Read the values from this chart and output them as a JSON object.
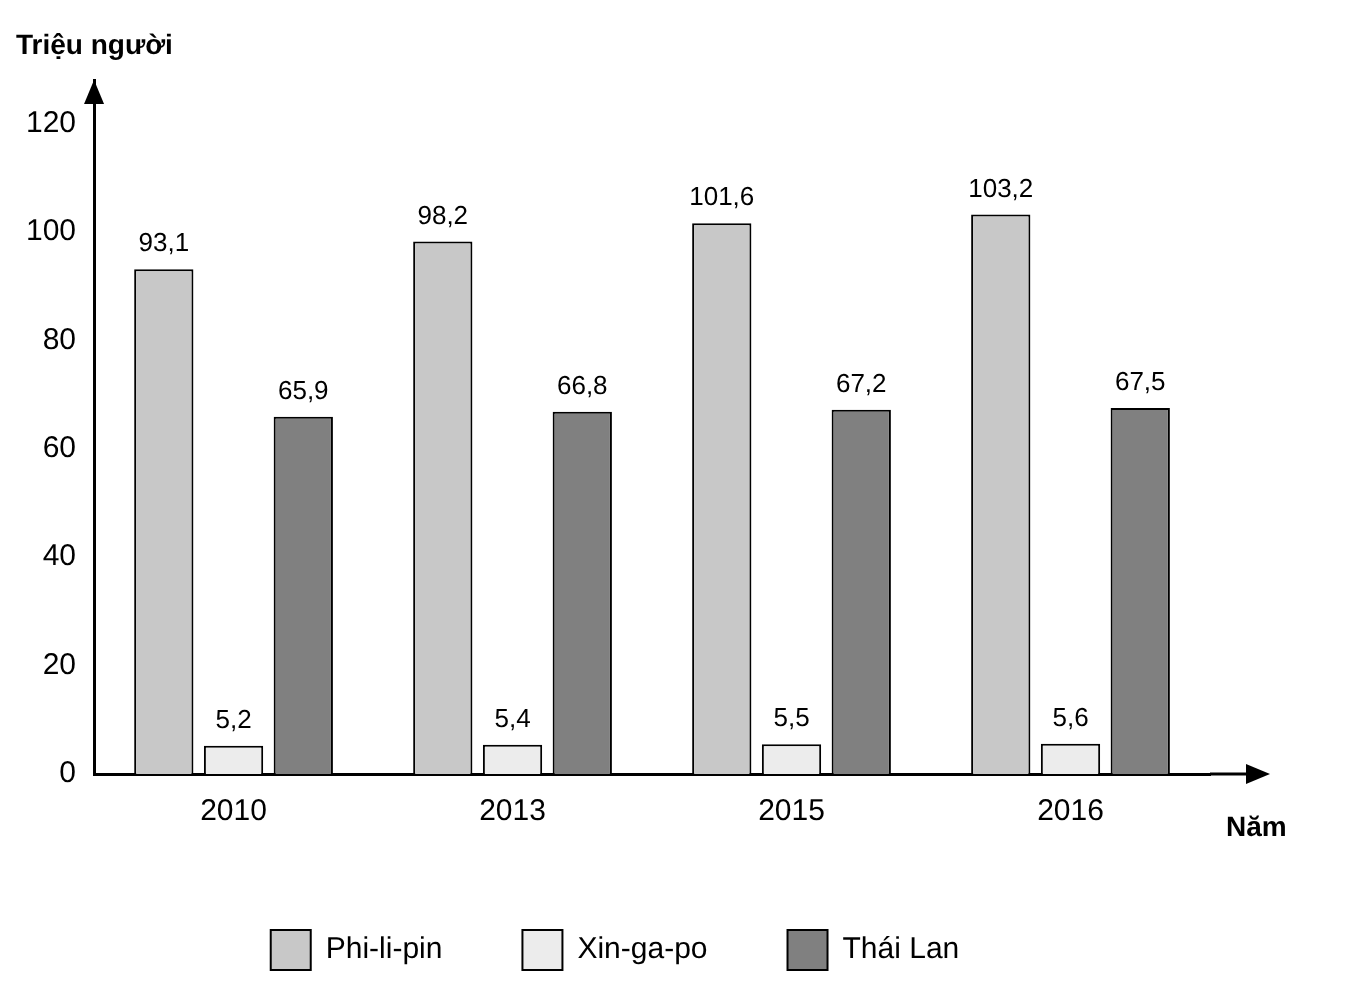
{
  "chart_data": {
    "type": "bar",
    "ylabel": "Triệu người",
    "xlabel": "Năm",
    "categories": [
      "2010",
      "2013",
      "2015",
      "2016"
    ],
    "series": [
      {
        "name": "Phi-li-pin",
        "color": "#c8c8c8",
        "values": [
          93.1,
          98.2,
          101.6,
          103.2
        ],
        "value_labels": [
          "93,1",
          "98,2",
          "101,6",
          "103,2"
        ]
      },
      {
        "name": "Xin-ga-po",
        "color": "#ececec",
        "values": [
          5.2,
          5.4,
          5.5,
          5.6
        ],
        "value_labels": [
          "5,2",
          "5,4",
          "5,5",
          "5,6"
        ]
      },
      {
        "name": "Thái Lan",
        "color": "#808080",
        "values": [
          65.9,
          66.8,
          67.2,
          67.5
        ],
        "value_labels": [
          "65,9",
          "66,8",
          "67,2",
          "67,5"
        ]
      }
    ],
    "ylim": [
      0,
      128
    ],
    "yticks": [
      0,
      20,
      40,
      60,
      80,
      100,
      120
    ],
    "grid": false,
    "legend": "bottom"
  }
}
